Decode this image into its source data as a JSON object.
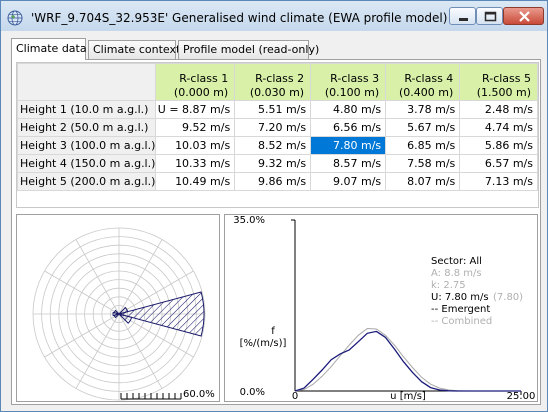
{
  "window": {
    "title": "'WRF_9.704S_32.953E' Generalised wind climate (EWA profile model)",
    "icon": "globe-icon"
  },
  "tabs": [
    {
      "label": "Climate data",
      "active": true
    },
    {
      "label": "Climate context",
      "active": false
    },
    {
      "label": "Profile model (read-only)",
      "active": false
    }
  ],
  "table": {
    "columns": [
      {
        "name": "R-class 1",
        "sub": "(0.000 m)"
      },
      {
        "name": "R-class 2",
        "sub": "(0.030 m)"
      },
      {
        "name": "R-class 3",
        "sub": "(0.100 m)"
      },
      {
        "name": "R-class 4",
        "sub": "(0.400 m)"
      },
      {
        "name": "R-class 5",
        "sub": "(1.500 m)"
      }
    ],
    "rows": [
      {
        "label": "Height 1  (10.0 m a.g.l.)",
        "values": [
          "U = 8.87 m/s",
          "5.51 m/s",
          "4.80 m/s",
          "3.78 m/s",
          "2.48 m/s"
        ]
      },
      {
        "label": "Height 2  (50.0 m a.g.l.)",
        "values": [
          "9.52 m/s",
          "7.20 m/s",
          "6.56 m/s",
          "5.67 m/s",
          "4.74 m/s"
        ]
      },
      {
        "label": "Height 3  (100.0 m a.g.l.)",
        "values": [
          "10.03 m/s",
          "8.52 m/s",
          "7.80 m/s",
          "6.85 m/s",
          "5.86 m/s"
        ]
      },
      {
        "label": "Height 4  (150.0 m a.g.l.)",
        "values": [
          "10.33 m/s",
          "9.32 m/s",
          "8.57 m/s",
          "7.58 m/s",
          "6.57 m/s"
        ]
      },
      {
        "label": "Height 5  (200.0 m a.g.l.)",
        "values": [
          "10.49 m/s",
          "9.86 m/s",
          "9.07 m/s",
          "8.07 m/s",
          "7.13 m/s"
        ]
      }
    ],
    "selected": {
      "row": 2,
      "col": 2
    }
  },
  "rose": {
    "scale_label": "60.0%",
    "rings": 10
  },
  "chart_data": {
    "type": "line",
    "ylabel": "f\n[%/(m/s)]",
    "xlabel": "u [m/s]",
    "xlim": [
      0,
      25
    ],
    "ylim": [
      0,
      35
    ],
    "x_tick_labels": [
      "0",
      "25.00"
    ],
    "y_tick_labels": [
      "0.0%",
      "35.0%"
    ],
    "series": [
      {
        "name": "Emergent",
        "color": "#1a1a7a",
        "x": [
          0,
          1,
          2,
          3,
          4,
          5,
          6,
          7,
          8,
          9,
          10,
          11,
          12,
          13,
          14,
          15,
          16,
          17,
          18,
          19,
          20,
          21,
          22,
          23,
          24,
          25
        ],
        "y": [
          0,
          0.6,
          2.4,
          4.3,
          6.4,
          7.6,
          8.4,
          10.1,
          11.8,
          12.2,
          11.0,
          8.6,
          6.0,
          3.8,
          1.9,
          0.7,
          0.2,
          0.05,
          0,
          0,
          0,
          0,
          0,
          0,
          0,
          0
        ]
      },
      {
        "name": "Combined",
        "color": "#a8a8a8",
        "x": [
          0,
          1,
          2,
          3,
          4,
          5,
          6,
          7,
          8,
          9,
          10,
          11,
          12,
          13,
          14,
          15,
          16,
          17,
          18,
          19,
          20,
          21,
          22,
          23,
          24,
          25
        ],
        "y": [
          0,
          0.3,
          1.4,
          3.0,
          5.0,
          7.2,
          9.4,
          11.4,
          12.8,
          12.7,
          11.4,
          9.4,
          7.0,
          4.8,
          2.8,
          1.4,
          0.6,
          0.2,
          0.05,
          0,
          0,
          0,
          0,
          0,
          0,
          0
        ]
      }
    ],
    "legend": {
      "sector": "Sector: All",
      "a": "A: 8.8 m/s",
      "k": "k: 2.75",
      "u": "U: 7.80 m/s",
      "u_combined": "(7.80)",
      "emergent": "-- Emergent",
      "combined": "-- Combined"
    }
  }
}
